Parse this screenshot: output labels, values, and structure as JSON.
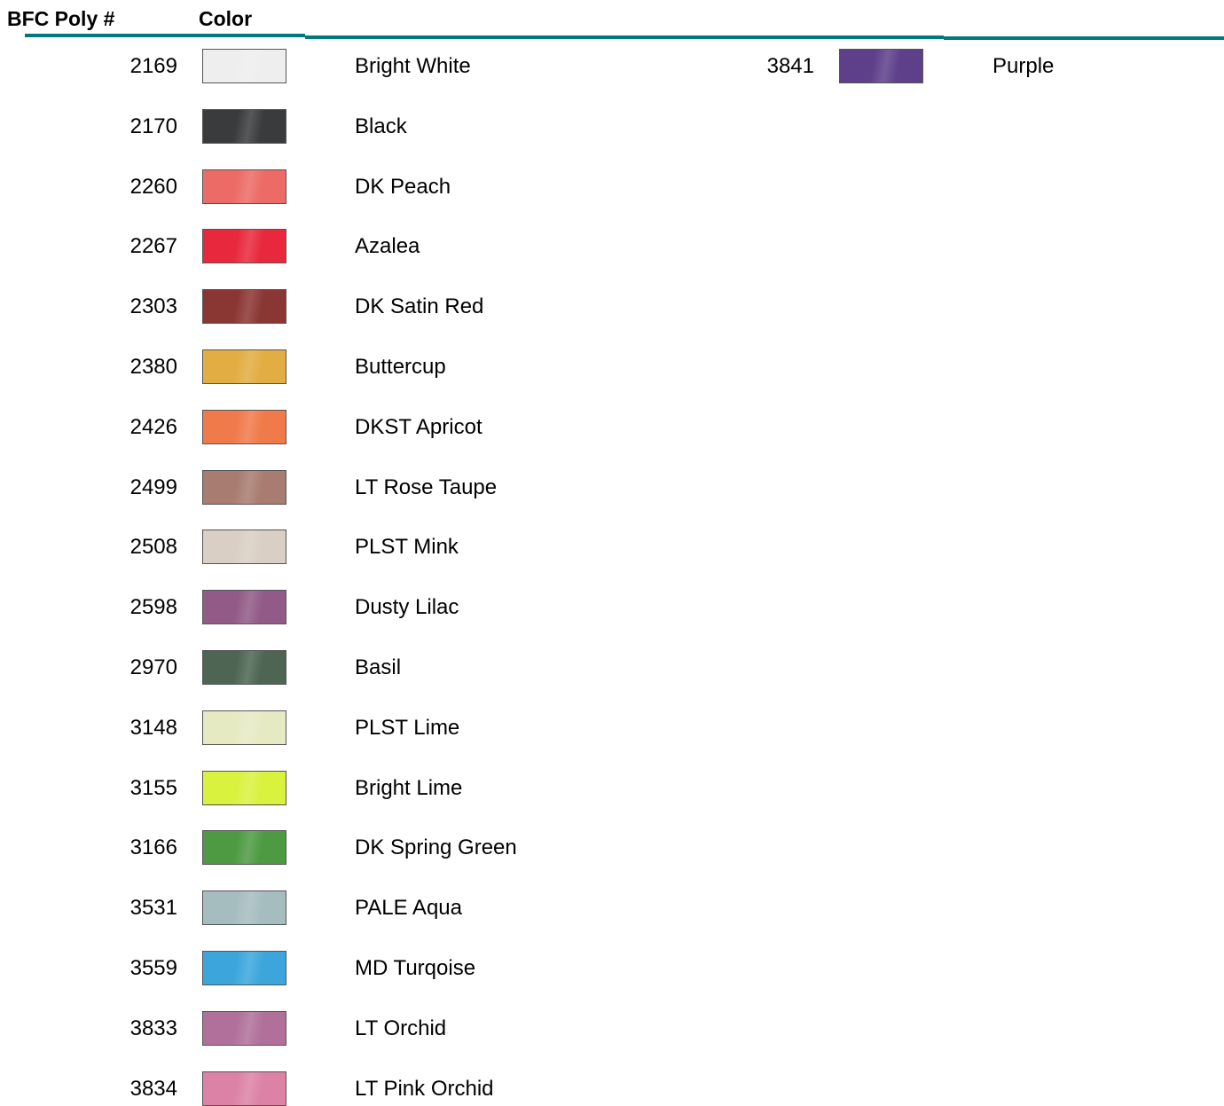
{
  "header": {
    "number_label": "BFC Poly #",
    "color_label": "Color"
  },
  "columns": [
    {
      "rows": [
        {
          "number": "2169",
          "swatch": "#eeeeee",
          "name": "Bright White"
        },
        {
          "number": "2170",
          "swatch": "#3a3b3d",
          "name": "Black"
        },
        {
          "number": "2260",
          "swatch": "#ec6b66",
          "name": "DK Peach"
        },
        {
          "number": "2267",
          "swatch": "#e8283c",
          "name": "Azalea"
        },
        {
          "number": "2303",
          "swatch": "#8a3633",
          "name": "DK Satin Red"
        },
        {
          "number": "2380",
          "swatch": "#e2ad42",
          "name": "Buttercup"
        },
        {
          "number": "2426",
          "swatch": "#f07a4a",
          "name": "DKST Apricot"
        },
        {
          "number": "2499",
          "swatch": "#a87c70",
          "name": "LT Rose Taupe"
        },
        {
          "number": "2508",
          "swatch": "#d9cfc4",
          "name": "PLST Mink"
        },
        {
          "number": "2598",
          "swatch": "#915a87",
          "name": "Dusty Lilac"
        },
        {
          "number": "2970",
          "swatch": "#4d6552",
          "name": "Basil"
        },
        {
          "number": "3148",
          "swatch": "#e6eac3",
          "name": "PLST Lime"
        },
        {
          "number": "3155",
          "swatch": "#d8f23e",
          "name": "Bright Lime"
        },
        {
          "number": "3166",
          "swatch": "#4d9a42",
          "name": "DK Spring Green"
        },
        {
          "number": "3531",
          "swatch": "#a6bdbf",
          "name": "PALE Aqua"
        },
        {
          "number": "3559",
          "swatch": "#3ca6dc",
          "name": "MD Turqoise"
        },
        {
          "number": "3833",
          "swatch": "#b0709a",
          "name": "LT Orchid"
        },
        {
          "number": "3834",
          "swatch": "#dc82a6",
          "name": "LT Pink Orchid"
        }
      ]
    },
    {
      "rows": [
        {
          "number": "3841",
          "swatch": "#5e3f8a",
          "name": "Purple"
        }
      ]
    }
  ]
}
